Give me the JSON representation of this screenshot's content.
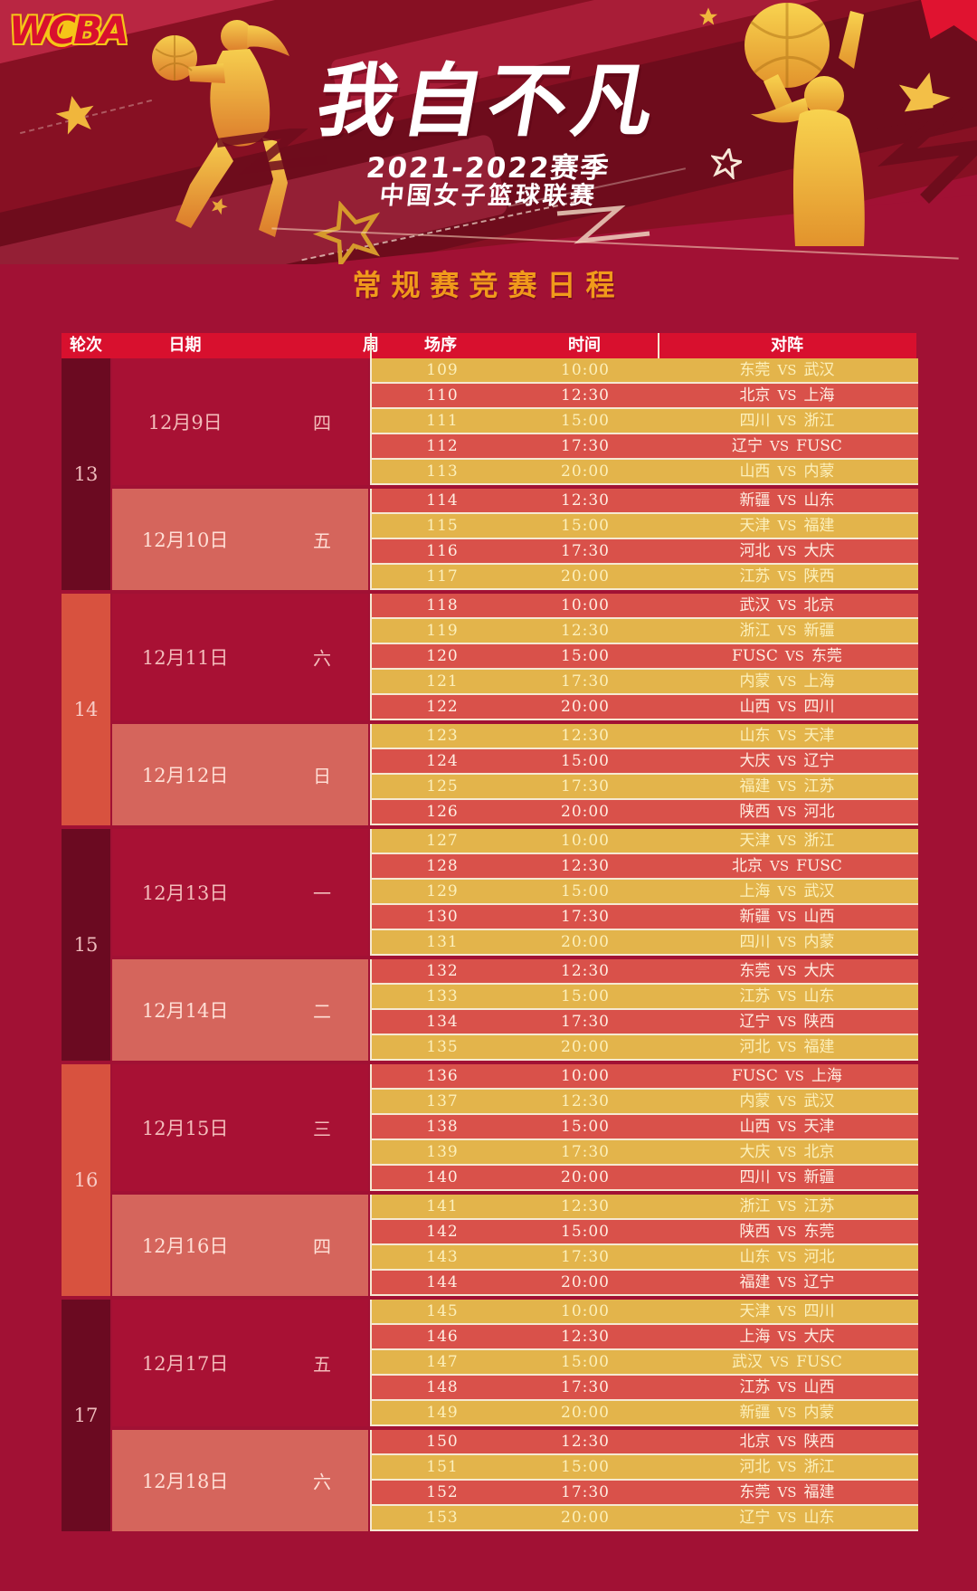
{
  "banner": {
    "logo": "WCBA",
    "title": "我自不凡",
    "season": "2021-2022赛季",
    "league": "中国女子篮球联赛"
  },
  "heading": "常规赛竞赛日程",
  "table_header": {
    "round": "轮次",
    "date": "日期",
    "week": "周",
    "game_no": "场序",
    "time": "时间",
    "matchup": "对阵"
  },
  "vs_label": "VS",
  "colors": {
    "page_bg": "#a11134",
    "header_red": "#d8102e",
    "gold_row": "#e3b44b",
    "red_row": "#d9514a",
    "date_dark": "#a81134",
    "date_light": "#d5655c",
    "round_dark": "#6b0a21",
    "round_light": "#d8523f",
    "heading": "#f09a1b",
    "divider": "#f6e8d2"
  },
  "rounds": [
    {
      "round": "13",
      "dates": [
        {
          "date": "12月9日",
          "weekday": "四",
          "games": [
            {
              "no": "109",
              "time": "10:00",
              "home": "东莞",
              "away": "武汉"
            },
            {
              "no": "110",
              "time": "12:30",
              "home": "北京",
              "away": "上海"
            },
            {
              "no": "111",
              "time": "15:00",
              "home": "四川",
              "away": "浙江"
            },
            {
              "no": "112",
              "time": "17:30",
              "home": "辽宁",
              "away": "FUSC"
            },
            {
              "no": "113",
              "time": "20:00",
              "home": "山西",
              "away": "内蒙"
            }
          ]
        },
        {
          "date": "12月10日",
          "weekday": "五",
          "games": [
            {
              "no": "114",
              "time": "12:30",
              "home": "新疆",
              "away": "山东"
            },
            {
              "no": "115",
              "time": "15:00",
              "home": "天津",
              "away": "福建"
            },
            {
              "no": "116",
              "time": "17:30",
              "home": "河北",
              "away": "大庆"
            },
            {
              "no": "117",
              "time": "20:00",
              "home": "江苏",
              "away": "陕西"
            }
          ]
        }
      ]
    },
    {
      "round": "14",
      "dates": [
        {
          "date": "12月11日",
          "weekday": "六",
          "games": [
            {
              "no": "118",
              "time": "10:00",
              "home": "武汉",
              "away": "北京"
            },
            {
              "no": "119",
              "time": "12:30",
              "home": "浙江",
              "away": "新疆"
            },
            {
              "no": "120",
              "time": "15:00",
              "home": "FUSC",
              "away": "东莞"
            },
            {
              "no": "121",
              "time": "17:30",
              "home": "内蒙",
              "away": "上海"
            },
            {
              "no": "122",
              "time": "20:00",
              "home": "山西",
              "away": "四川"
            }
          ]
        },
        {
          "date": "12月12日",
          "weekday": "日",
          "games": [
            {
              "no": "123",
              "time": "12:30",
              "home": "山东",
              "away": "天津"
            },
            {
              "no": "124",
              "time": "15:00",
              "home": "大庆",
              "away": "辽宁"
            },
            {
              "no": "125",
              "time": "17:30",
              "home": "福建",
              "away": "江苏"
            },
            {
              "no": "126",
              "time": "20:00",
              "home": "陕西",
              "away": "河北"
            }
          ]
        }
      ]
    },
    {
      "round": "15",
      "dates": [
        {
          "date": "12月13日",
          "weekday": "一",
          "games": [
            {
              "no": "127",
              "time": "10:00",
              "home": "天津",
              "away": "浙江"
            },
            {
              "no": "128",
              "time": "12:30",
              "home": "北京",
              "away": "FUSC"
            },
            {
              "no": "129",
              "time": "15:00",
              "home": "上海",
              "away": "武汉"
            },
            {
              "no": "130",
              "time": "17:30",
              "home": "新疆",
              "away": "山西"
            },
            {
              "no": "131",
              "time": "20:00",
              "home": "四川",
              "away": "内蒙"
            }
          ]
        },
        {
          "date": "12月14日",
          "weekday": "二",
          "games": [
            {
              "no": "132",
              "time": "12:30",
              "home": "东莞",
              "away": "大庆"
            },
            {
              "no": "133",
              "time": "15:00",
              "home": "江苏",
              "away": "山东"
            },
            {
              "no": "134",
              "time": "17:30",
              "home": "辽宁",
              "away": "陕西"
            },
            {
              "no": "135",
              "time": "20:00",
              "home": "河北",
              "away": "福建"
            }
          ]
        }
      ]
    },
    {
      "round": "16",
      "dates": [
        {
          "date": "12月15日",
          "weekday": "三",
          "games": [
            {
              "no": "136",
              "time": "10:00",
              "home": "FUSC",
              "away": "上海"
            },
            {
              "no": "137",
              "time": "12:30",
              "home": "内蒙",
              "away": "武汉"
            },
            {
              "no": "138",
              "time": "15:00",
              "home": "山西",
              "away": "天津"
            },
            {
              "no": "139",
              "time": "17:30",
              "home": "大庆",
              "away": "北京"
            },
            {
              "no": "140",
              "time": "20:00",
              "home": "四川",
              "away": "新疆"
            }
          ]
        },
        {
          "date": "12月16日",
          "weekday": "四",
          "games": [
            {
              "no": "141",
              "time": "12:30",
              "home": "浙江",
              "away": "江苏"
            },
            {
              "no": "142",
              "time": "15:00",
              "home": "陕西",
              "away": "东莞"
            },
            {
              "no": "143",
              "time": "17:30",
              "home": "山东",
              "away": "河北"
            },
            {
              "no": "144",
              "time": "20:00",
              "home": "福建",
              "away": "辽宁"
            }
          ]
        }
      ]
    },
    {
      "round": "17",
      "dates": [
        {
          "date": "12月17日",
          "weekday": "五",
          "games": [
            {
              "no": "145",
              "time": "10:00",
              "home": "天津",
              "away": "四川"
            },
            {
              "no": "146",
              "time": "12:30",
              "home": "上海",
              "away": "大庆"
            },
            {
              "no": "147",
              "time": "15:00",
              "home": "武汉",
              "away": "FUSC"
            },
            {
              "no": "148",
              "time": "17:30",
              "home": "江苏",
              "away": "山西"
            },
            {
              "no": "149",
              "time": "20:00",
              "home": "新疆",
              "away": "内蒙"
            }
          ]
        },
        {
          "date": "12月18日",
          "weekday": "六",
          "games": [
            {
              "no": "150",
              "time": "12:30",
              "home": "北京",
              "away": "陕西"
            },
            {
              "no": "151",
              "time": "15:00",
              "home": "河北",
              "away": "浙江"
            },
            {
              "no": "152",
              "time": "17:30",
              "home": "东莞",
              "away": "福建"
            },
            {
              "no": "153",
              "time": "20:00",
              "home": "辽宁",
              "away": "山东"
            }
          ]
        }
      ]
    }
  ]
}
